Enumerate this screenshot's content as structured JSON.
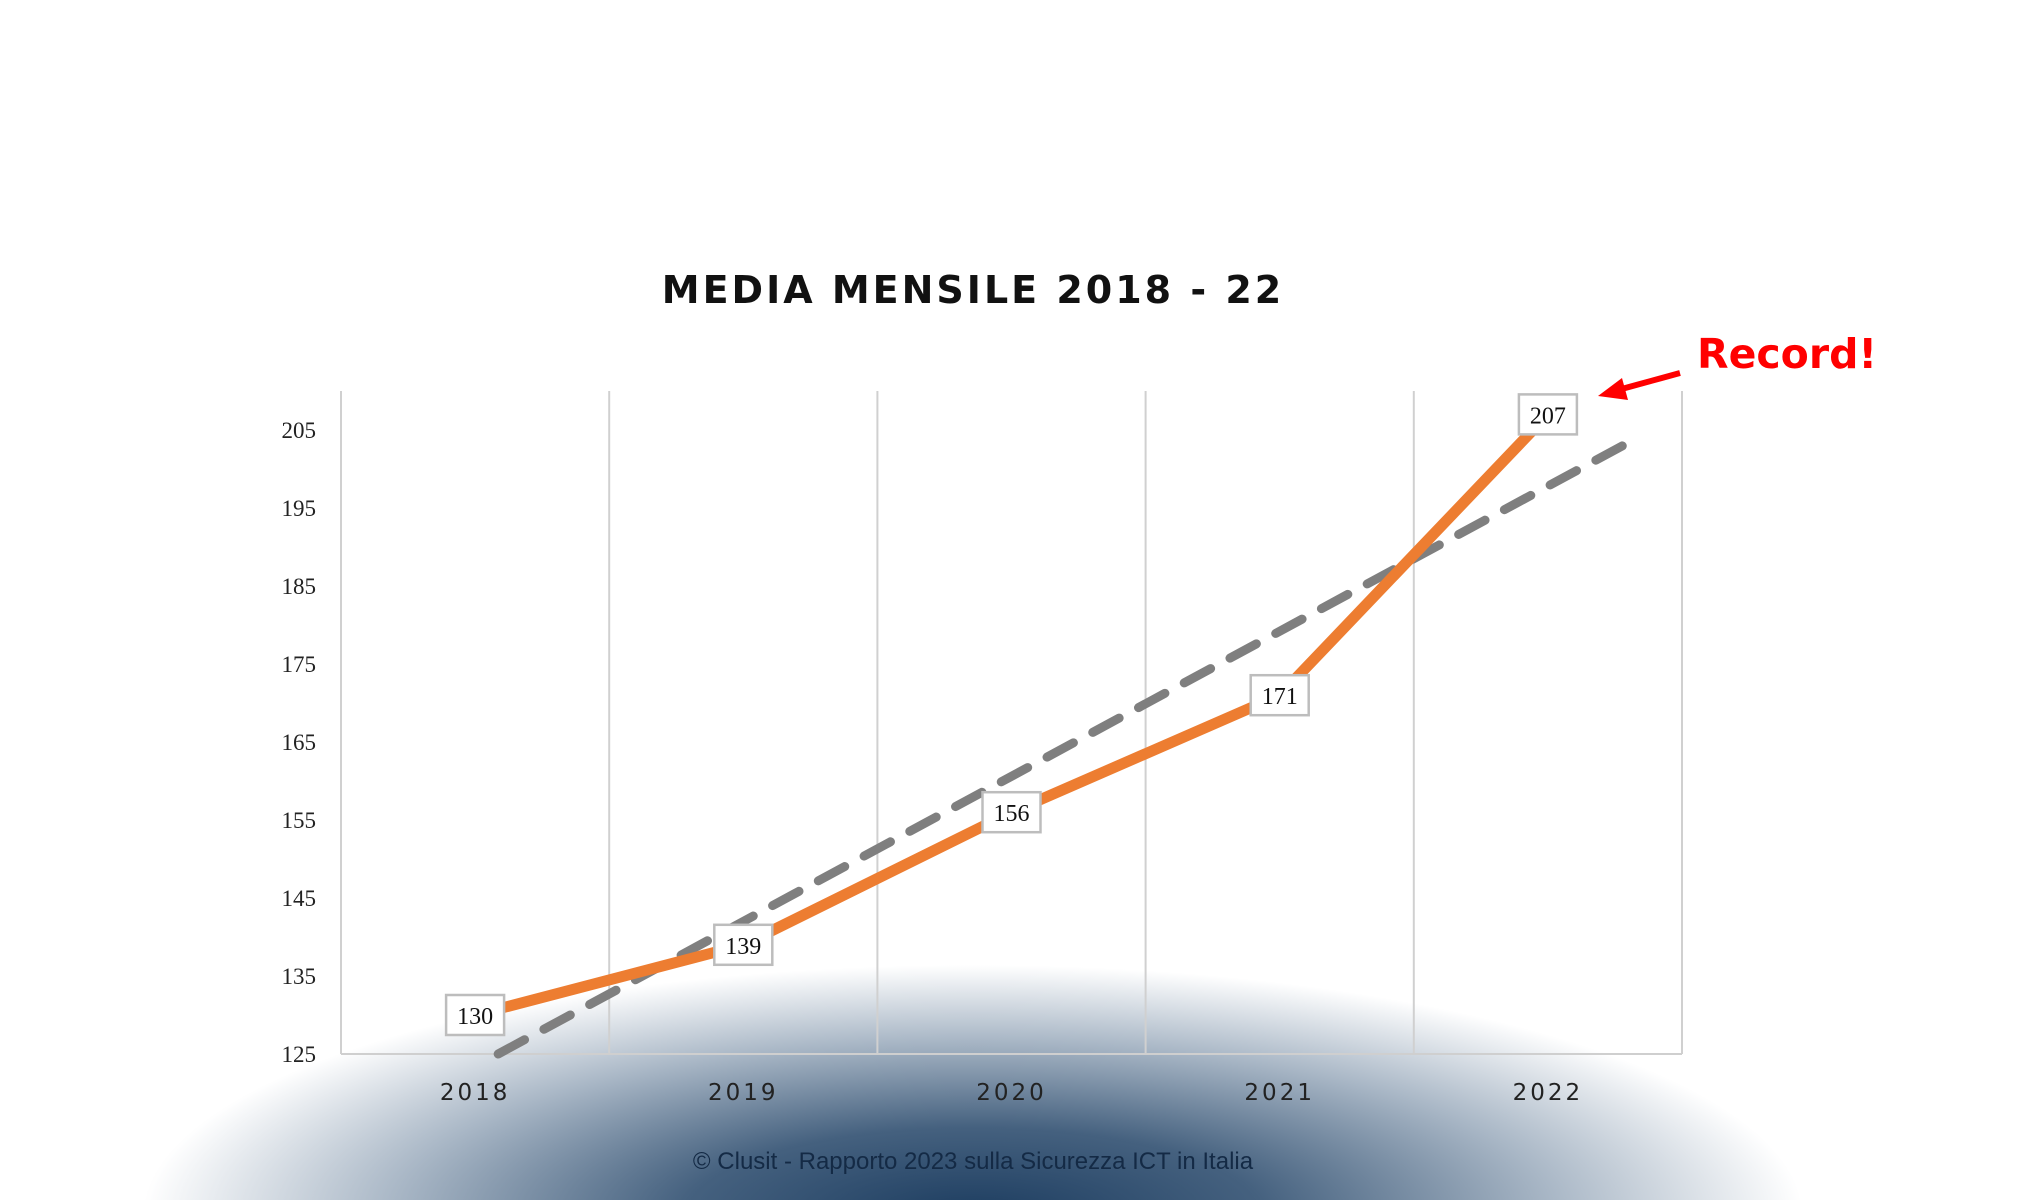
{
  "chart_data": {
    "type": "line",
    "title": "MEDIA MENSILE 2018 - 22",
    "categories": [
      "2018",
      "2019",
      "2020",
      "2021",
      "2022"
    ],
    "series": [
      {
        "values": [
          130,
          139,
          156,
          171,
          207
        ],
        "color": "#ed7d31"
      }
    ],
    "data_labels": [
      "130",
      "139",
      "156",
      "171",
      "207"
    ],
    "trendline": {
      "type": "linear",
      "style": "dashed",
      "color": "#7f7f7f"
    },
    "ylim": [
      125,
      210
    ],
    "yticks": [
      125,
      135,
      145,
      155,
      165,
      175,
      185,
      195,
      205
    ],
    "grid": "vertical",
    "annotation": {
      "text": "Record!",
      "color": "#ff0000",
      "points_to": "2022"
    }
  },
  "footer": "© Clusit - Rapporto 2023 sulla Sicurezza ICT in Italia"
}
